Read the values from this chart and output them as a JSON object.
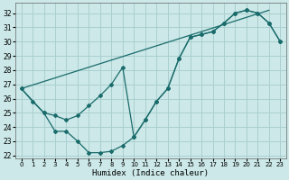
{
  "xlabel": "Humidex (Indice chaleur)",
  "background_color": "#cce8e8",
  "grid_color": "#aacfcf",
  "line_color": "#1a6b6b",
  "xlim": [
    -0.5,
    23.5
  ],
  "ylim": [
    21.8,
    32.7
  ],
  "xticks": [
    0,
    1,
    2,
    3,
    4,
    5,
    6,
    7,
    8,
    9,
    10,
    11,
    12,
    13,
    14,
    15,
    16,
    17,
    18,
    19,
    20,
    21,
    22,
    23
  ],
  "yticks": [
    22,
    23,
    24,
    25,
    26,
    27,
    28,
    29,
    30,
    31,
    32
  ],
  "line1_x": [
    0,
    1,
    2,
    3,
    4,
    5,
    6,
    7,
    8,
    9,
    10,
    11,
    12,
    13,
    14,
    15,
    16,
    17,
    18,
    19,
    20,
    21,
    22,
    23
  ],
  "line1_y": [
    26.7,
    25.8,
    25.0,
    23.7,
    23.7,
    23.0,
    22.2,
    22.2,
    22.3,
    22.7,
    23.3,
    24.5,
    25.8,
    26.7,
    28.8,
    30.3,
    30.5,
    30.7,
    31.3,
    32.0,
    32.2,
    32.0,
    31.3,
    30.0
  ],
  "line2_x": [
    0,
    2,
    3,
    4,
    5,
    6,
    7,
    8,
    9,
    10,
    11,
    12,
    13,
    14,
    15,
    16,
    17,
    18,
    19,
    20,
    21,
    22,
    23
  ],
  "line2_y": [
    26.7,
    25.0,
    24.8,
    24.5,
    24.8,
    25.5,
    26.2,
    27.0,
    28.2,
    23.3,
    24.5,
    25.8,
    26.7,
    28.8,
    30.3,
    30.5,
    30.7,
    31.3,
    32.0,
    32.2,
    32.0,
    31.3,
    30.0
  ],
  "line3_x": [
    0,
    22
  ],
  "line3_y": [
    26.7,
    32.2
  ]
}
